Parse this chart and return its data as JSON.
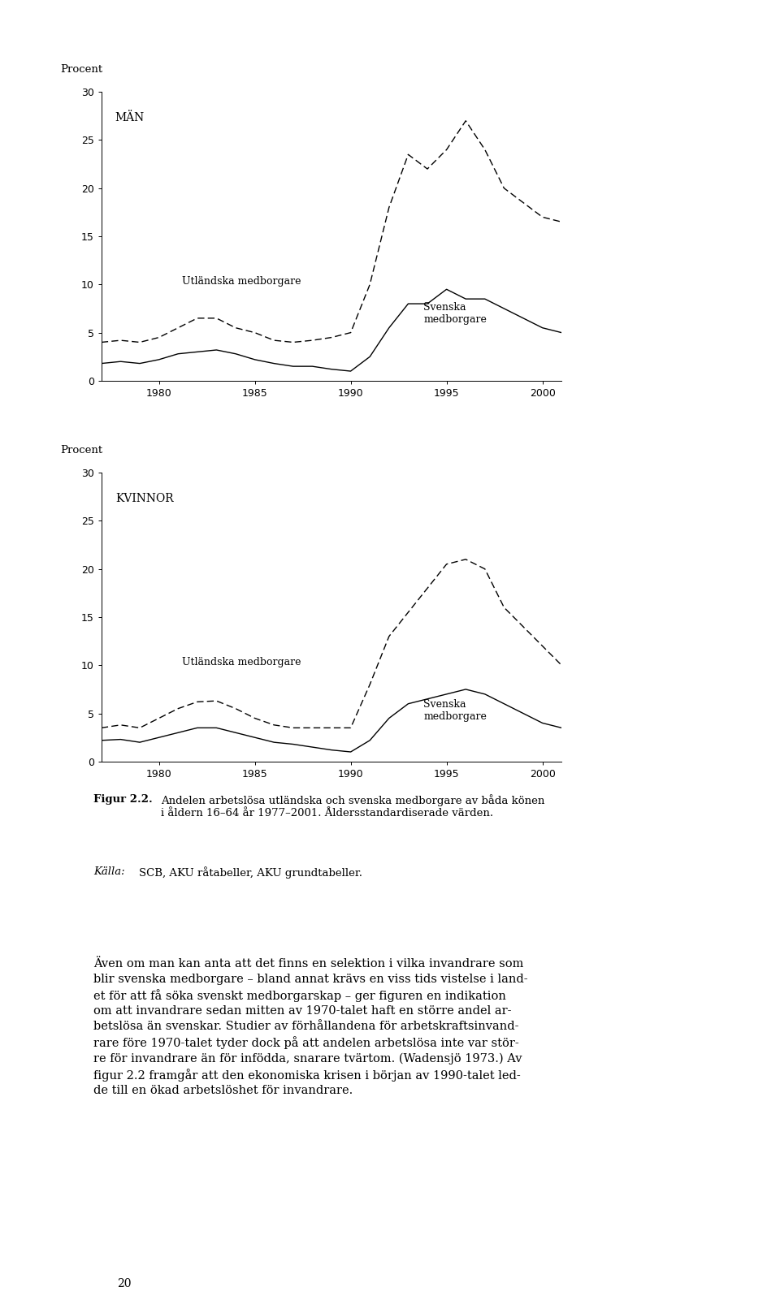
{
  "men_years": [
    1977,
    1978,
    1979,
    1980,
    1981,
    1982,
    1983,
    1984,
    1985,
    1986,
    1987,
    1988,
    1989,
    1990,
    1991,
    1992,
    1993,
    1994,
    1995,
    1996,
    1997,
    1998,
    1999,
    2000,
    2001
  ],
  "men_utlandska": [
    4.0,
    4.2,
    4.0,
    4.5,
    5.5,
    6.5,
    6.5,
    5.5,
    5.0,
    4.2,
    4.0,
    4.2,
    4.5,
    5.0,
    10.0,
    18.0,
    23.5,
    22.0,
    24.0,
    27.0,
    24.0,
    20.0,
    18.5,
    17.0,
    16.5
  ],
  "men_svenska": [
    1.8,
    2.0,
    1.8,
    2.2,
    2.8,
    3.0,
    3.2,
    2.8,
    2.2,
    1.8,
    1.5,
    1.5,
    1.2,
    1.0,
    2.5,
    5.5,
    8.0,
    8.0,
    9.5,
    8.5,
    8.5,
    7.5,
    6.5,
    5.5,
    5.0
  ],
  "women_years": [
    1977,
    1978,
    1979,
    1980,
    1981,
    1982,
    1983,
    1984,
    1985,
    1986,
    1987,
    1988,
    1989,
    1990,
    1991,
    1992,
    1993,
    1994,
    1995,
    1996,
    1997,
    1998,
    1999,
    2000,
    2001
  ],
  "women_utlandska": [
    3.5,
    3.8,
    3.5,
    4.5,
    5.5,
    6.2,
    6.3,
    5.5,
    4.5,
    3.8,
    3.5,
    3.5,
    3.5,
    3.5,
    8.0,
    13.0,
    15.5,
    18.0,
    20.5,
    21.0,
    20.0,
    16.0,
    14.0,
    12.0,
    10.0
  ],
  "women_svenska": [
    2.2,
    2.3,
    2.0,
    2.5,
    3.0,
    3.5,
    3.5,
    3.0,
    2.5,
    2.0,
    1.8,
    1.5,
    1.2,
    1.0,
    2.2,
    4.5,
    6.0,
    6.5,
    7.0,
    7.5,
    7.0,
    6.0,
    5.0,
    4.0,
    3.5
  ],
  "ylim": [
    0,
    30
  ],
  "yticks": [
    0,
    5,
    10,
    15,
    20,
    25,
    30
  ],
  "xlim": [
    1977,
    2001
  ],
  "xticks": [
    1980,
    1985,
    1990,
    1995,
    2000
  ],
  "ylabel": "Procent",
  "men_label": "MÄN",
  "women_label": "KVINNOR",
  "utlandska_label": "Utländska medborgare",
  "svenska_label_men": "Svenska\nmedborgare",
  "svenska_label_women": "Svenska\nmedborgare",
  "caption_figur": "Figur 2.2.",
  "caption_rest": " Andelen arbetslösa utländska och svenska medborgare av båda könen i åldern 16–64 år 1977–2001. Åldersstandardiserade värden.",
  "caption_source_italic": "Källa:",
  "caption_source_rest": " SCB, AKU råtabeller, AKU grundtabeller.",
  "body_text_lines": [
    "Även om man kan anta att det finns en selektion i vilka invandrare som",
    "blir svenska medborgare – bland annat krävs en viss tids vistelse i land-",
    "et för att få söka svenskt medborgarskap – ger figuren en indikation",
    "om att invandrare sedan mitten av 1970-talet haft en större andel ar-",
    "betslösa än svenskar. Studier av förhållandena för arbetskraftsinvand-",
    "rare före 1970-talet tyder dock på att andelen arbetslösa inte var stör-",
    "re för invandrare än för infödda, snarare tvärtom. (Wadensjö 1973.) Av",
    "figur 2.2 framgår att den ekonomiska krisen i början av 1990-talet led-",
    "de till en ökad arbetslöshet för invandrare."
  ],
  "page_number": "20",
  "background_color": "#ffffff"
}
